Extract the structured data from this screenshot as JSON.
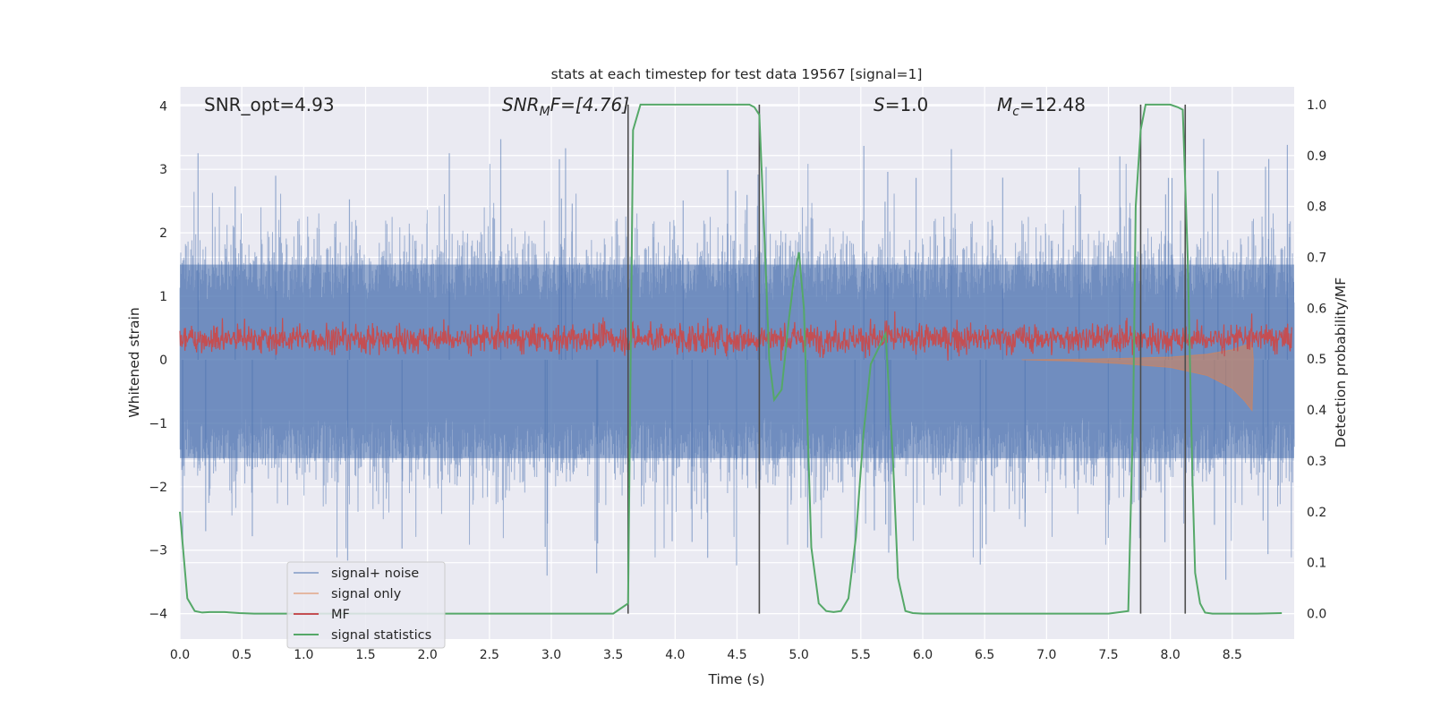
{
  "chart_data": {
    "type": "line",
    "title": "stats at each timestep for test data 19567 [signal=1]",
    "xlabel": "Time (s)",
    "ylabel_left": "Whitened strain",
    "ylabel_right": "Detection probability/MF",
    "xlim": [
      0.0,
      9.0
    ],
    "ylim_left": [
      -4.4,
      4.3
    ],
    "ylim_right": [
      -0.05,
      1.035
    ],
    "x_ticks": [
      "0.0",
      "0.5",
      "1.0",
      "1.5",
      "2.0",
      "2.5",
      "3.0",
      "3.5",
      "4.0",
      "4.5",
      "5.0",
      "5.5",
      "6.0",
      "6.5",
      "7.0",
      "7.5",
      "8.0",
      "8.5"
    ],
    "y_ticks_left": [
      "4",
      "3",
      "2",
      "1",
      "0",
      "−1",
      "−2",
      "−3",
      "−4"
    ],
    "y_ticks_right": [
      "1.0",
      "0.9",
      "0.8",
      "0.7",
      "0.6",
      "0.5",
      "0.4",
      "0.3",
      "0.2",
      "0.1",
      "0.0"
    ],
    "grid": true,
    "annotations": {
      "snr_opt": "SNR_opt=4.93",
      "snr_mf_name": "SNR",
      "snr_mf_sub": "M",
      "snr_mf_rest": "F=[4.76]",
      "s_name": "S",
      "s_value": "=1.0",
      "mc_name": "M",
      "mc_sub": "c",
      "mc_value": "=12.48"
    },
    "legend": {
      "placement": "lower-left",
      "entries": [
        "signal+ noise",
        "signal only",
        "MF",
        "signal statistics"
      ]
    },
    "series": [
      {
        "name": "signal statistics",
        "axis": "right",
        "color": "#55a868",
        "x": [
          0.0,
          0.06,
          0.12,
          0.18,
          0.24,
          0.36,
          0.48,
          0.6,
          1.0,
          1.5,
          2.0,
          2.5,
          3.0,
          3.5,
          3.56,
          3.62,
          3.66,
          3.72,
          3.8,
          4.0,
          4.5,
          4.6,
          4.64,
          4.68,
          4.72,
          4.76,
          4.8,
          4.86,
          4.92,
          4.96,
          5.0,
          5.04,
          5.1,
          5.16,
          5.22,
          5.28,
          5.34,
          5.4,
          5.46,
          5.52,
          5.58,
          5.64,
          5.7,
          5.76,
          5.8,
          5.86,
          5.92,
          6.0,
          6.5,
          7.0,
          7.5,
          7.66,
          7.7,
          7.72,
          7.76,
          7.8,
          7.9,
          8.0,
          8.06,
          8.1,
          8.14,
          8.18,
          8.2,
          8.24,
          8.28,
          8.34,
          8.5,
          8.7,
          8.9
        ],
        "y": [
          0.2,
          0.03,
          0.005,
          0.002,
          0.003,
          0.003,
          0.001,
          0.0,
          0.0,
          0.0,
          0.0,
          0.0,
          0.0,
          0.0,
          0.01,
          0.02,
          0.95,
          1.0,
          1.0,
          1.0,
          1.0,
          1.0,
          0.995,
          0.98,
          0.75,
          0.5,
          0.42,
          0.44,
          0.58,
          0.66,
          0.71,
          0.6,
          0.13,
          0.02,
          0.005,
          0.003,
          0.005,
          0.03,
          0.15,
          0.35,
          0.49,
          0.52,
          0.55,
          0.3,
          0.07,
          0.005,
          0.001,
          0.0,
          0.0,
          0.0,
          0.0,
          0.005,
          0.4,
          0.8,
          0.95,
          1.0,
          1.0,
          1.0,
          0.995,
          0.99,
          0.7,
          0.25,
          0.08,
          0.02,
          0.002,
          0.0,
          0.0,
          0.0,
          0.001
        ]
      },
      {
        "name": "signal only",
        "axis": "left",
        "color": "#dd8452",
        "x": [
          6.8,
          7.2,
          7.6,
          8.0,
          8.3,
          8.5,
          8.6,
          8.66,
          8.67
        ],
        "amplitude": [
          0.0,
          0.02,
          0.06,
          0.12,
          0.25,
          0.45,
          0.65,
          0.8,
          0.0
        ]
      },
      {
        "name": "MF",
        "axis": "right",
        "color": "#c44e52",
        "typical_range": [
          0.5,
          0.6
        ]
      },
      {
        "name": "signal+ noise",
        "axis": "left",
        "color": "#4c72b0",
        "typical_range": [
          -2.2,
          2.4
        ]
      }
    ],
    "vertical_lines_x": [
      3.62,
      4.68,
      7.76,
      8.12
    ]
  }
}
